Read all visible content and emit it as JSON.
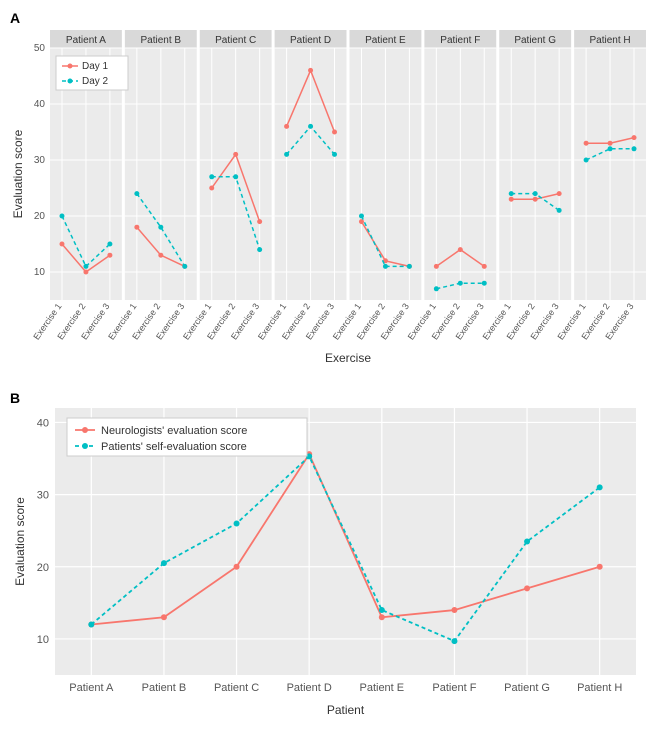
{
  "chartA": {
    "type": "line",
    "panel_label": "A",
    "facets": [
      "Patient A",
      "Patient B",
      "Patient C",
      "Patient D",
      "Patient E",
      "Patient F",
      "Patient G",
      "Patient H"
    ],
    "x_categories": [
      "Exercise 1",
      "Exercise 2",
      "Exercise 3"
    ],
    "x_axis_title": "Exercise",
    "y_axis_title": "Evaluation score",
    "ylim": [
      5,
      50
    ],
    "yticks": [
      10,
      20,
      30,
      40,
      50
    ],
    "series": [
      {
        "name": "Day 1",
        "color": "#f8766d",
        "dash": "none",
        "data": {
          "Patient A": [
            15,
            10,
            13
          ],
          "Patient B": [
            18,
            13,
            11
          ],
          "Patient C": [
            25,
            31,
            19
          ],
          "Patient D": [
            36,
            46,
            35
          ],
          "Patient E": [
            19,
            12,
            11
          ],
          "Patient F": [
            11,
            14,
            11
          ],
          "Patient G": [
            23,
            23,
            24
          ],
          "Patient H": [
            33,
            33,
            34
          ]
        }
      },
      {
        "name": "Day 2",
        "color": "#00bfc4",
        "dash": "4,3",
        "data": {
          "Patient A": [
            20,
            11,
            15
          ],
          "Patient B": [
            24,
            18,
            11
          ],
          "Patient C": [
            27,
            27,
            14
          ],
          "Patient D": [
            31,
            36,
            31
          ],
          "Patient E": [
            20,
            11,
            11
          ],
          "Patient F": [
            7,
            8,
            8
          ],
          "Patient G": [
            24,
            24,
            21
          ],
          "Patient H": [
            30,
            32,
            32
          ]
        }
      }
    ],
    "legend": {
      "x": 0,
      "items": [
        "Day 1",
        "Day 2"
      ]
    },
    "colors": {
      "panel_bg": "#ebebeb",
      "strip_bg": "#d9d9d9",
      "grid": "#ffffff",
      "text": "#555555",
      "axis_title": "#333333",
      "legend_bg": "#ffffff",
      "legend_border": "#cccccc"
    },
    "label_fontsize": 10,
    "strip_fontsize": 10,
    "axis_title_fontsize": 12
  },
  "chartB": {
    "type": "line",
    "panel_label": "B",
    "x_categories": [
      "Patient A",
      "Patient B",
      "Patient C",
      "Patient D",
      "Patient E",
      "Patient F",
      "Patient G",
      "Patient H"
    ],
    "x_axis_title": "Patient",
    "y_axis_title": "Evaluation score",
    "ylim": [
      5,
      42
    ],
    "yticks": [
      10,
      20,
      30,
      40
    ],
    "series": [
      {
        "name": "Neurologists' evaluation score",
        "color": "#f8766d",
        "dash": "none",
        "values": [
          12,
          13,
          20,
          35.6,
          13,
          14,
          17,
          20
        ]
      },
      {
        "name": "Patients' self-evaluation score",
        "color": "#00bfc4",
        "dash": "4,3",
        "values": [
          12,
          20.5,
          26,
          35.3,
          14,
          9.7,
          23.5,
          31
        ]
      }
    ],
    "legend": {
      "items": [
        "Neurologists' evaluation score",
        "Patients' self-evaluation score"
      ]
    },
    "colors": {
      "panel_bg": "#ebebeb",
      "grid": "#ffffff",
      "text": "#555555",
      "axis_title": "#333333",
      "legend_bg": "#ffffff",
      "legend_border": "#cccccc"
    },
    "label_fontsize": 11,
    "axis_title_fontsize": 12
  }
}
